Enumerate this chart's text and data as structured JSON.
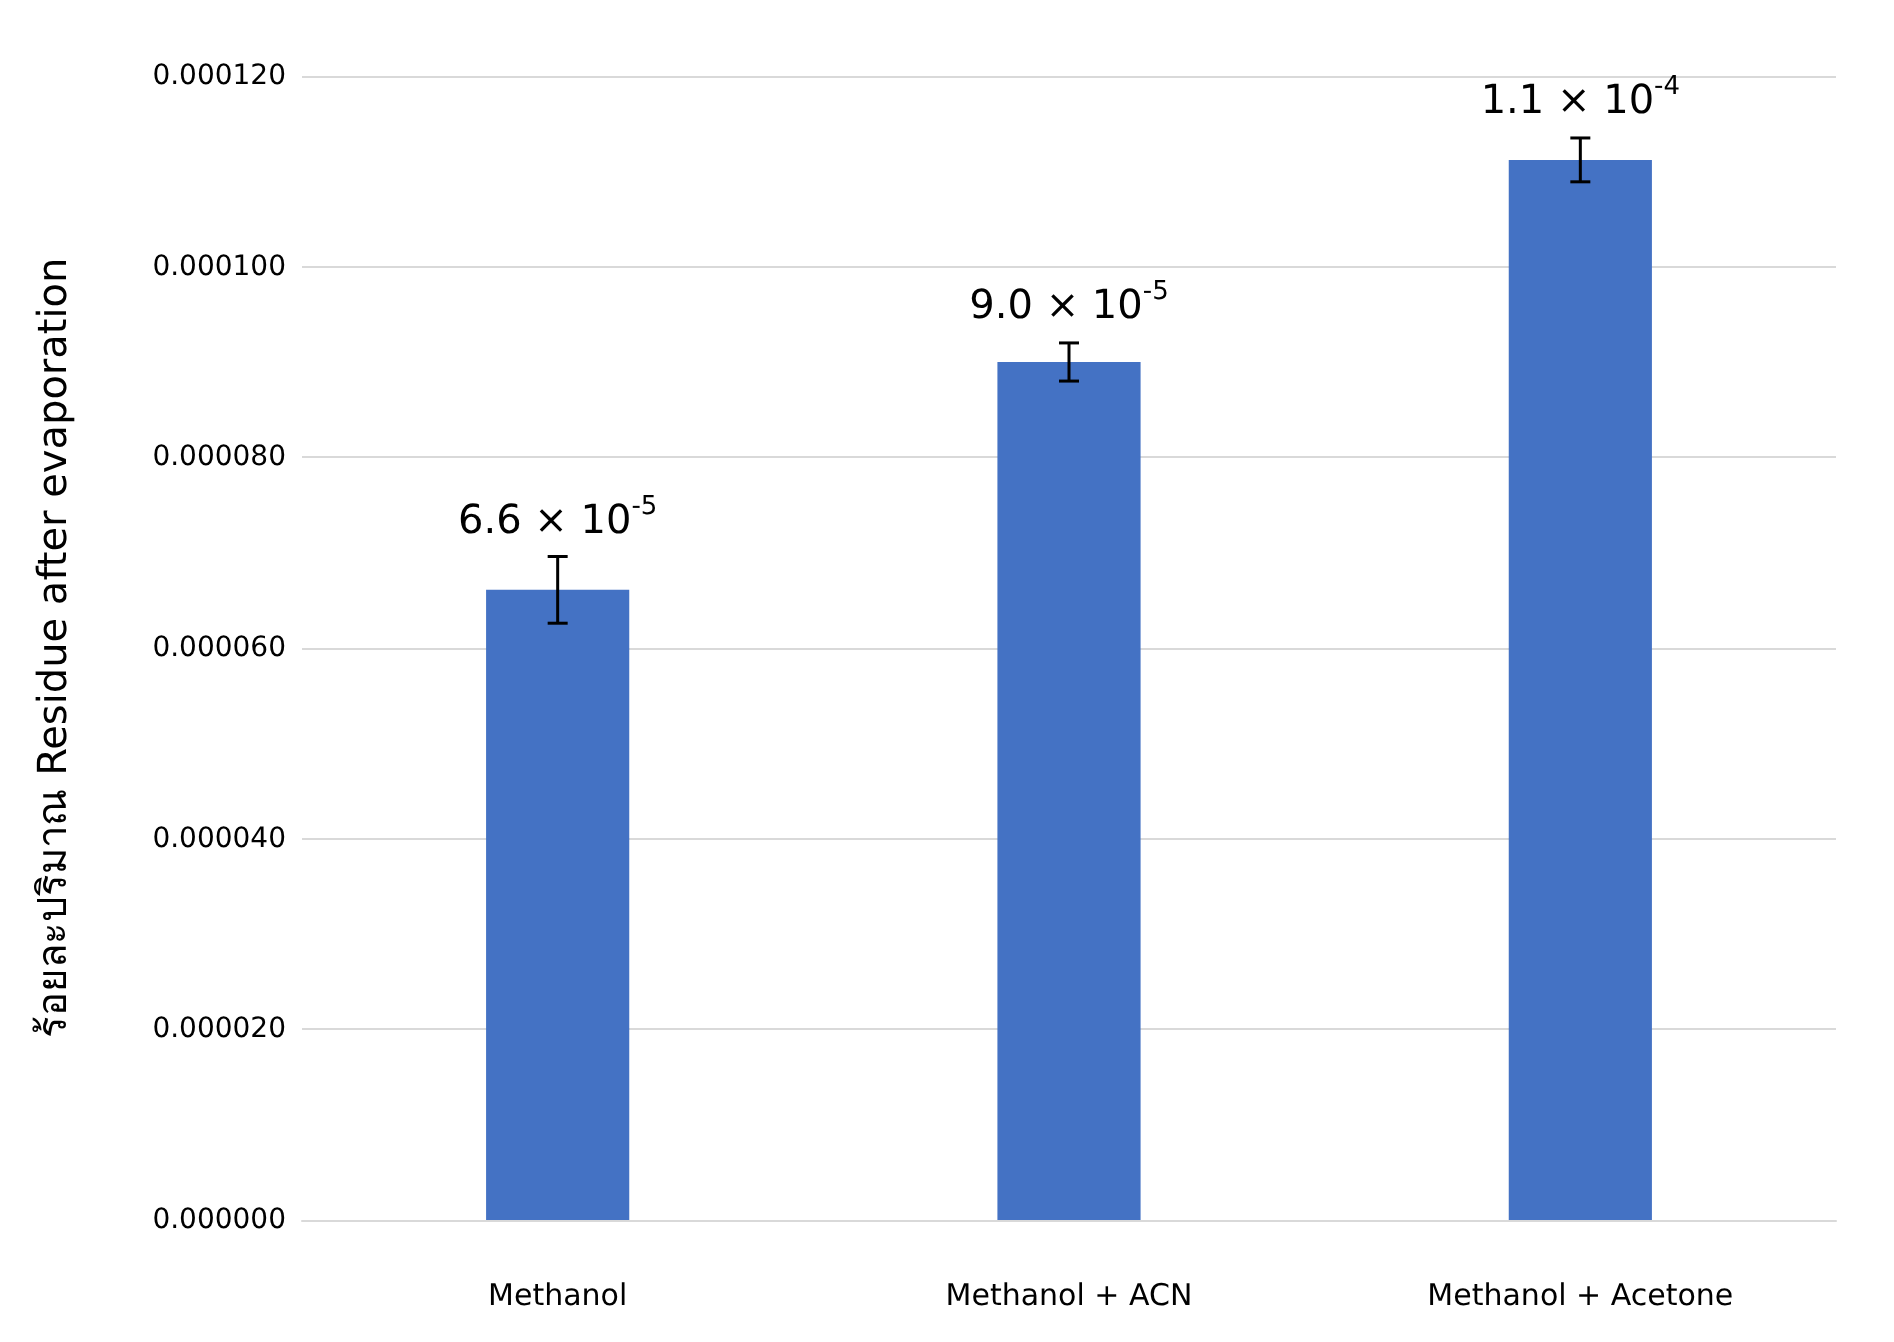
{
  "chart_data": {
    "type": "bar",
    "ylabel": "ร้อยละปริมาณ Residue after evaporation",
    "categories": [
      "Methanol",
      "Methanol + ACN",
      "Methanol + Acetone"
    ],
    "values": [
      6.61e-05,
      9e-05,
      0.0001112
    ],
    "errors": [
      3.5e-06,
      2e-06,
      2.3e-06
    ],
    "value_labels": [
      "6.6 × 10$^{-5}$",
      "9.0 × 10$^{-5}$",
      "1.1 × 10$^{-4}$"
    ],
    "color": "#4472c4",
    "ylim": [
      0,
      0.00012
    ],
    "yticks": [
      {
        "value": 0,
        "label": "0.000000"
      },
      {
        "value": 2e-05,
        "label": "0.000020"
      },
      {
        "value": 4e-05,
        "label": "0.000040"
      },
      {
        "value": 6e-05,
        "label": "0.000060"
      },
      {
        "value": 8e-05,
        "label": "0.000080"
      },
      {
        "value": 0.0001,
        "label": "0.000100"
      },
      {
        "value": 0.00012,
        "label": "0.000120"
      }
    ],
    "grid": "y"
  }
}
